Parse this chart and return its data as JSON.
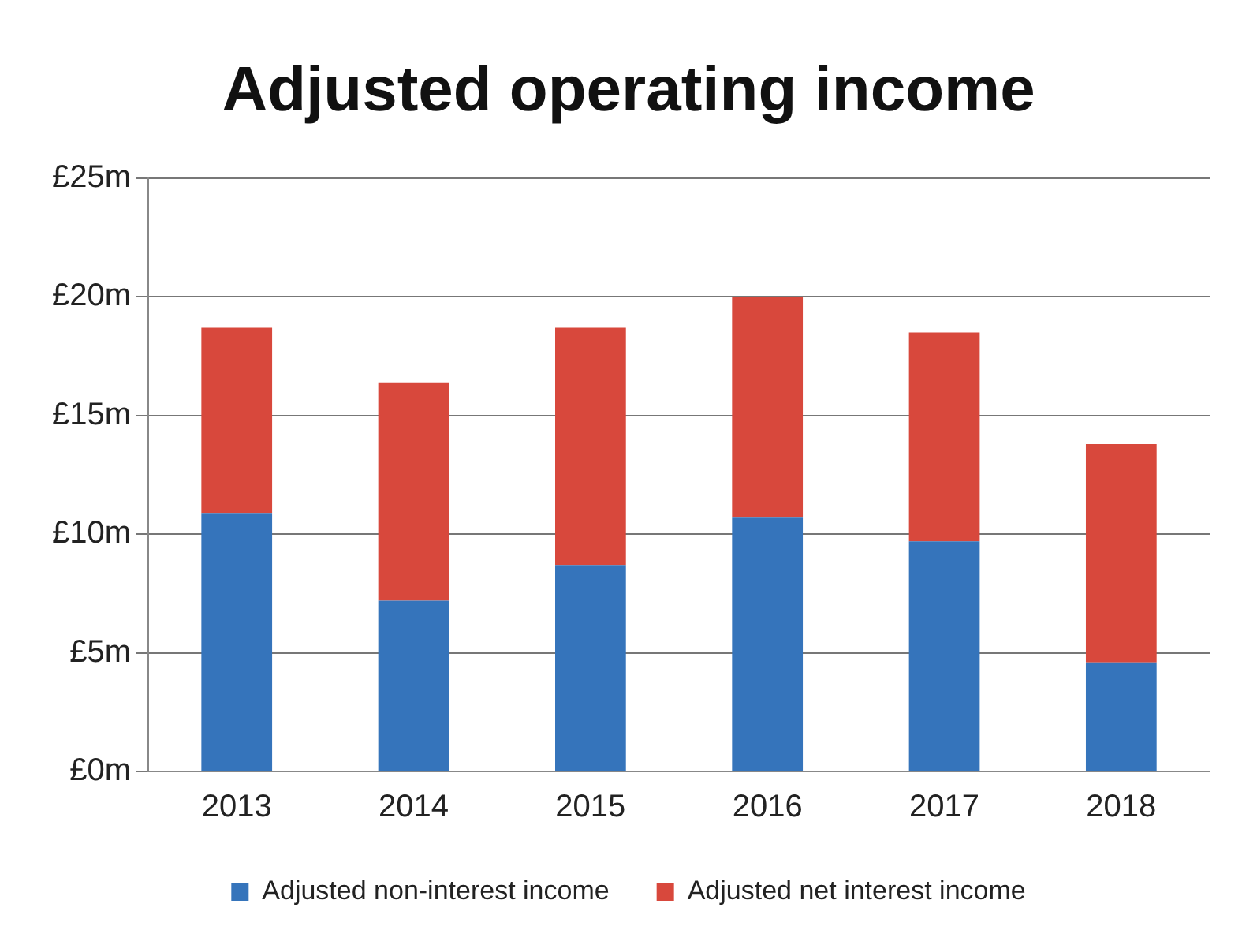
{
  "chart_data": {
    "type": "bar",
    "title": "Adjusted operating income",
    "categories": [
      "2013",
      "2014",
      "2015",
      "2016",
      "2017",
      "2018"
    ],
    "stacked": true,
    "series": [
      {
        "name": "Adjusted non-interest income",
        "color": "#3574bb",
        "values": [
          10.9,
          7.2,
          8.7,
          10.7,
          9.7,
          4.6
        ]
      },
      {
        "name": "Adjusted net interest income",
        "color": "#d8483c",
        "values": [
          7.8,
          9.2,
          10.0,
          9.3,
          8.8,
          9.2
        ]
      }
    ],
    "ylim": [
      0,
      25
    ],
    "yticks": [
      {
        "value": 0,
        "label": "£0m"
      },
      {
        "value": 5,
        "label": "£5m"
      },
      {
        "value": 10,
        "label": "£10m"
      },
      {
        "value": 15,
        "label": "£15m"
      },
      {
        "value": 20,
        "label": "£20m"
      },
      {
        "value": 25,
        "label": "£25m"
      }
    ],
    "grid": "y",
    "legend": "bottom"
  }
}
